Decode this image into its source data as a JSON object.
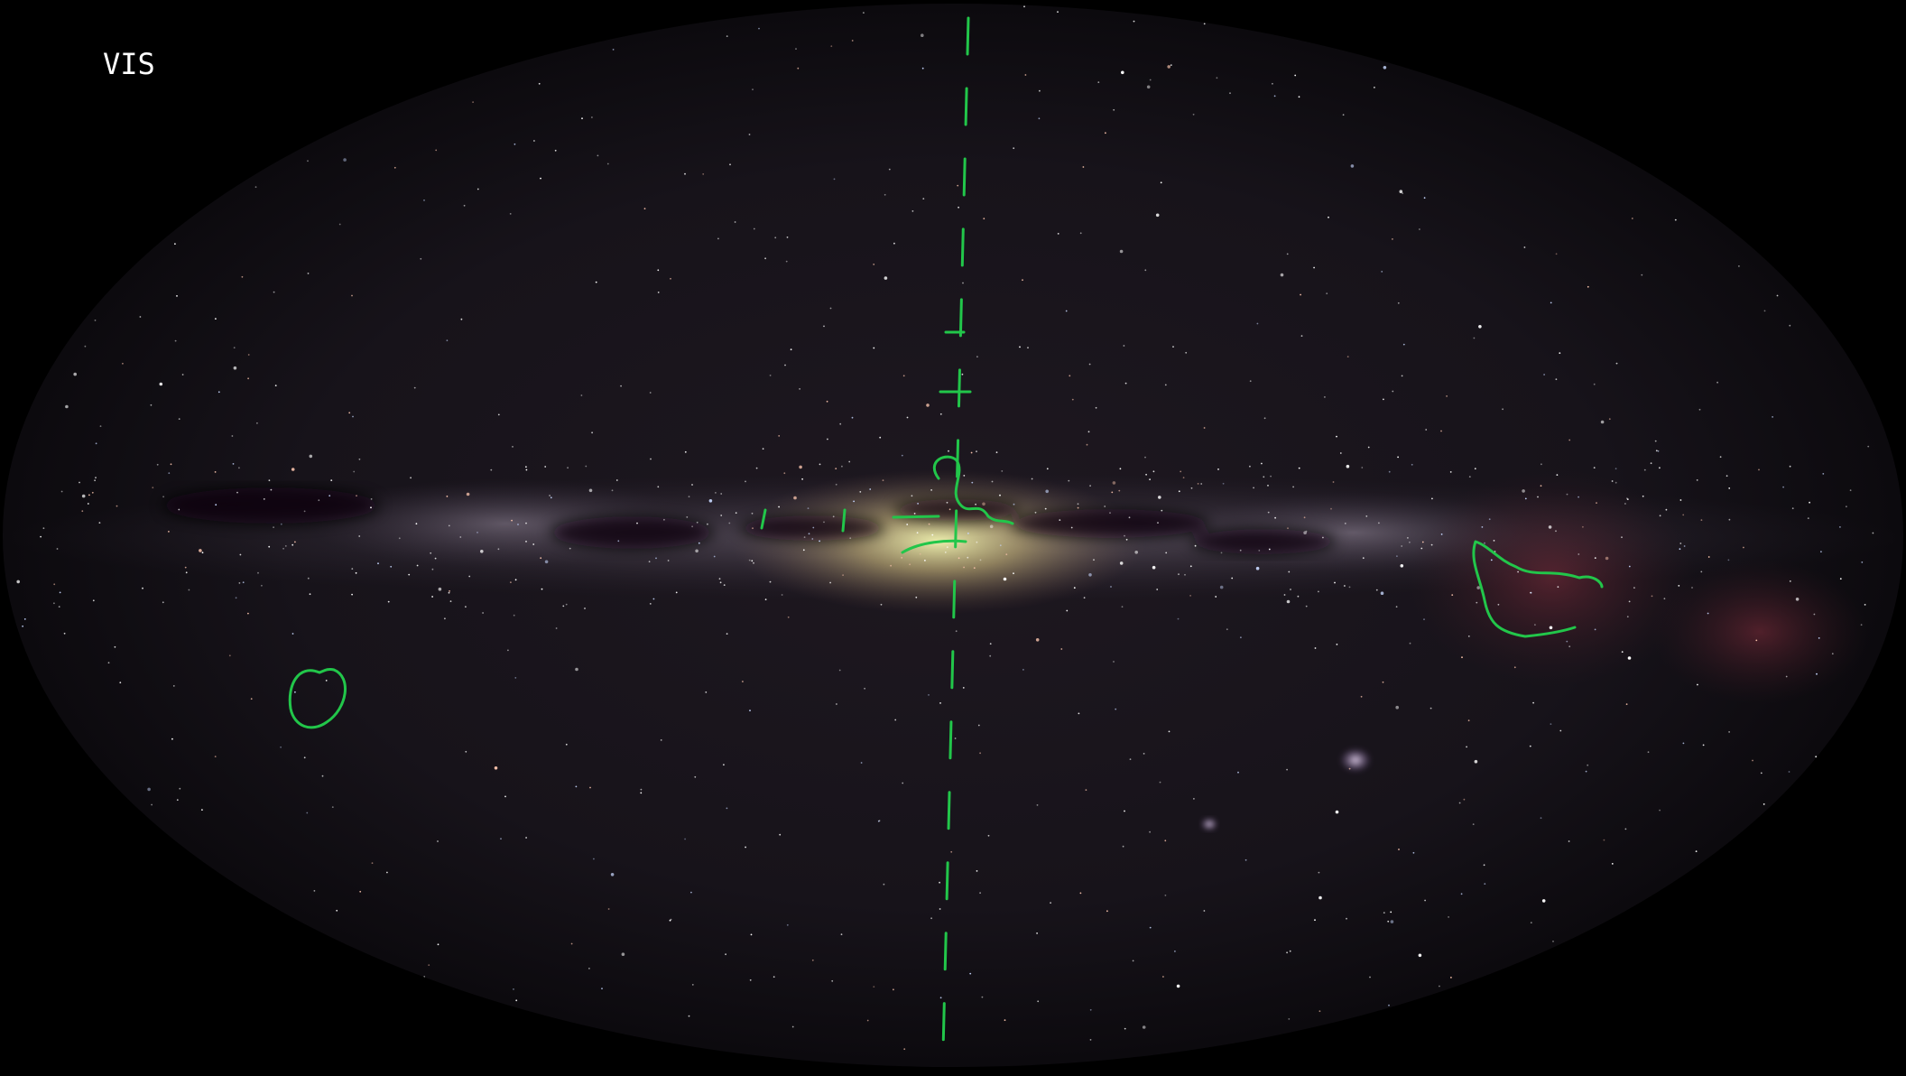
{
  "label": "VIS"
}
